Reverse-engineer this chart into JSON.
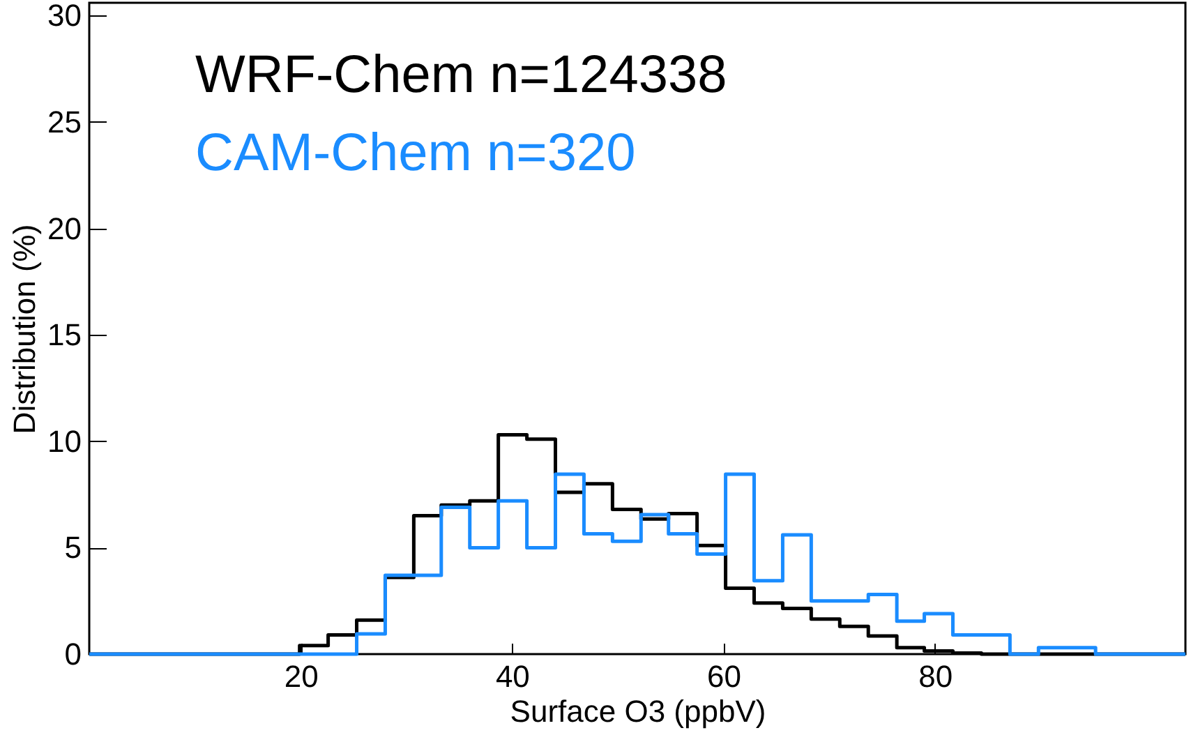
{
  "chart_data": {
    "type": "histogram",
    "xlabel": "Surface O3 (ppbV)",
    "ylabel": "Distribution (%)",
    "bins": [
      0,
      19.9,
      22.6,
      25.3,
      28.0,
      30.7,
      33.3,
      36.0,
      38.7,
      41.4,
      44.1,
      46.8,
      49.5,
      52.2,
      54.8,
      57.5,
      60.2,
      62.9,
      65.6,
      68.3,
      71.0,
      73.7,
      76.4,
      79.0,
      81.7,
      84.4,
      87.1,
      89.8,
      92.5,
      95.2,
      103.7
    ],
    "series": [
      {
        "name": "WRF-Chem n=124338",
        "color": "#000000",
        "values": [
          0,
          0.4,
          0.9,
          1.6,
          3.6,
          6.5,
          7.0,
          7.2,
          10.3,
          10.1,
          7.6,
          8.0,
          6.8,
          6.35,
          6.6,
          5.1,
          3.1,
          2.4,
          2.15,
          1.65,
          1.3,
          0.85,
          0.3,
          0.15,
          0.05,
          0,
          0,
          0,
          0,
          0
        ]
      },
      {
        "name": "CAM-Chem n=320",
        "color": "#1a8cff",
        "values": [
          0,
          0,
          0,
          0.95,
          3.7,
          3.7,
          6.9,
          5.0,
          7.2,
          5.0,
          8.45,
          5.65,
          5.3,
          6.55,
          5.65,
          4.7,
          8.45,
          3.45,
          5.6,
          2.5,
          2.5,
          2.8,
          1.55,
          1.9,
          0.9,
          0.9,
          0,
          0.3,
          0.3,
          0
        ]
      }
    ],
    "xlim": [
      0,
      103.7
    ],
    "xticks": [
      20,
      40,
      60,
      80
    ],
    "ylim": [
      0,
      30.6
    ],
    "yticks": [
      0,
      5,
      10,
      15,
      20,
      25,
      30
    ],
    "grid": false,
    "legend": "top left"
  }
}
